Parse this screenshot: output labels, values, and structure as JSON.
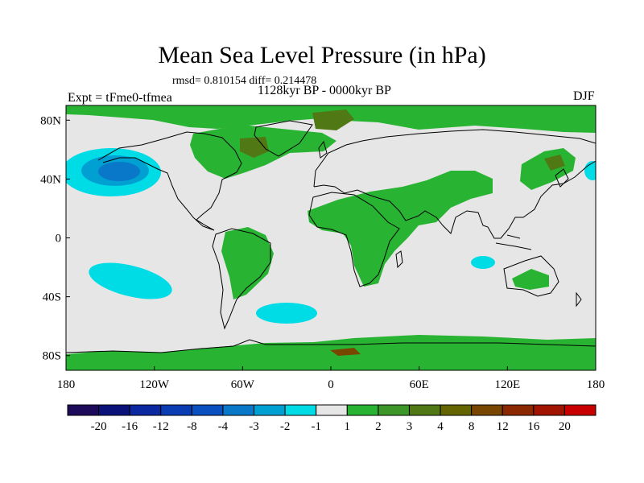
{
  "title": "Mean Sea Level Pressure (in hPa)",
  "stats": "rmsd= 0.810154 diff= 0.214478",
  "experiment": "Expt = tFme0-tfmea",
  "period": "1128kyr BP - 0000kyr BP",
  "season": "DJF",
  "map": {
    "projection": "cylindrical equidistant",
    "lon_range": [
      -180,
      180
    ],
    "lat_range": [
      -90,
      90
    ],
    "lon_ticks": [
      {
        "value": -180,
        "label": "180"
      },
      {
        "value": -120,
        "label": "120W"
      },
      {
        "value": -60,
        "label": "60W"
      },
      {
        "value": 0,
        "label": "0"
      },
      {
        "value": 60,
        "label": "60E"
      },
      {
        "value": 120,
        "label": "120E"
      },
      {
        "value": 180,
        "label": "180"
      }
    ],
    "lat_ticks": [
      {
        "value": 80,
        "label": "80N"
      },
      {
        "value": 40,
        "label": "40N"
      },
      {
        "value": 0,
        "label": "0"
      },
      {
        "value": -40,
        "label": "40S"
      },
      {
        "value": -80,
        "label": "80S"
      }
    ],
    "background_color": "#e6e6e6"
  },
  "colorbar": {
    "colors": [
      "#1e0a5a",
      "#0a127a",
      "#0a28a0",
      "#0a3cb4",
      "#0a50c0",
      "#0a78c8",
      "#00a0d2",
      "#00dce6",
      "#e6e6e6",
      "#28b432",
      "#3c9628",
      "#507814",
      "#646400",
      "#784600",
      "#8c2800",
      "#a01400",
      "#c80000"
    ],
    "labels": [
      "-20",
      "-16",
      "-12",
      "-8",
      "-4",
      "-3",
      "-2",
      "-1",
      "1",
      "2",
      "3",
      "4",
      "8",
      "12",
      "16",
      "20"
    ]
  }
}
